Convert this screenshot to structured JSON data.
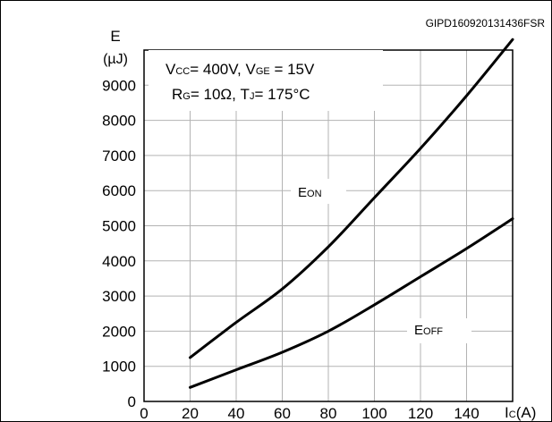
{
  "figure_code": "GIPD160920131436FSR",
  "y_axis_label": {
    "main": "E",
    "unit": "(µJ)"
  },
  "x_axis_label": {
    "main": "I",
    "sub": "C",
    "unit": "(A)"
  },
  "conditions": {
    "line1": {
      "p1": "V",
      "s1": "CC",
      "p2": "= 400V, V",
      "s2": "GE",
      "p3": " = 15V"
    },
    "line2": {
      "p1": "R",
      "s1": "G",
      "p2": "= 10Ω, T",
      "s2": "J",
      "p3": "= 175°C"
    }
  },
  "colors": {
    "frame": "#000000",
    "grid": "#b3b3b3",
    "curve": "#000000",
    "background": "#ffffff"
  },
  "chart_data": {
    "type": "line",
    "grid": true,
    "xlim": [
      0,
      160
    ],
    "ylim": [
      0,
      10000
    ],
    "x_ticks": [
      0,
      20,
      40,
      60,
      80,
      100,
      120,
      140
    ],
    "x_tick_labels": [
      "0",
      "20",
      "40",
      "60",
      "80",
      "100",
      "120",
      "140"
    ],
    "y_ticks": [
      0,
      1000,
      2000,
      3000,
      4000,
      5000,
      6000,
      7000,
      8000,
      9000
    ],
    "y_tick_labels": [
      "0",
      "1000",
      "2000",
      "3000",
      "4000",
      "5000",
      "6000",
      "7000",
      "8000",
      "9000"
    ],
    "series": [
      {
        "name": "EON",
        "label": {
          "main": "E",
          "sub": "ON"
        },
        "x": [
          20,
          40,
          60,
          80,
          100,
          120,
          140,
          160
        ],
        "y": [
          1250,
          2250,
          3200,
          4400,
          5800,
          7200,
          8700,
          10300
        ]
      },
      {
        "name": "EOFF",
        "label": {
          "main": "E",
          "sub": "OFF"
        },
        "x": [
          20,
          40,
          60,
          80,
          100,
          120,
          140,
          160
        ],
        "y": [
          400,
          900,
          1400,
          2000,
          2750,
          3550,
          4350,
          5200
        ]
      }
    ]
  }
}
